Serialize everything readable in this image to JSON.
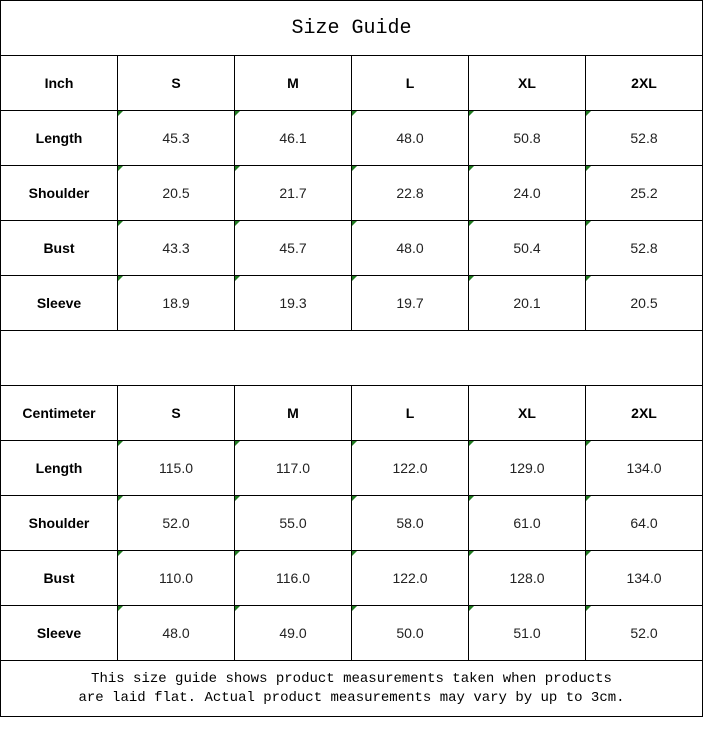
{
  "title": "Size Guide",
  "tables": [
    {
      "unit": "Inch",
      "sizes": [
        "S",
        "M",
        "L",
        "XL",
        "2XL"
      ],
      "rows": [
        {
          "label": "Length",
          "values": [
            "45.3",
            "46.1",
            "48.0",
            "50.8",
            "52.8"
          ]
        },
        {
          "label": "Shoulder",
          "values": [
            "20.5",
            "21.7",
            "22.8",
            "24.0",
            "25.2"
          ]
        },
        {
          "label": "Bust",
          "values": [
            "43.3",
            "45.7",
            "48.0",
            "50.4",
            "52.8"
          ]
        },
        {
          "label": "Sleeve",
          "values": [
            "18.9",
            "19.3",
            "19.7",
            "20.1",
            "20.5"
          ]
        }
      ]
    },
    {
      "unit": "Centimeter",
      "sizes": [
        "S",
        "M",
        "L",
        "XL",
        "2XL"
      ],
      "rows": [
        {
          "label": "Length",
          "values": [
            "115.0",
            "117.0",
            "122.0",
            "129.0",
            "134.0"
          ]
        },
        {
          "label": "Shoulder",
          "values": [
            "52.0",
            "55.0",
            "58.0",
            "61.0",
            "64.0"
          ]
        },
        {
          "label": "Bust",
          "values": [
            "110.0",
            "116.0",
            "122.0",
            "128.0",
            "134.0"
          ]
        },
        {
          "label": "Sleeve",
          "values": [
            "48.0",
            "49.0",
            "50.0",
            "51.0",
            "52.0"
          ]
        }
      ]
    }
  ],
  "note_line1": "This size guide shows product measurements taken when products",
  "note_line2": "are laid flat. Actual product measurements may vary by up to 3cm.",
  "colors": {
    "border": "#000000",
    "text_marker": "#1f7a1f"
  }
}
